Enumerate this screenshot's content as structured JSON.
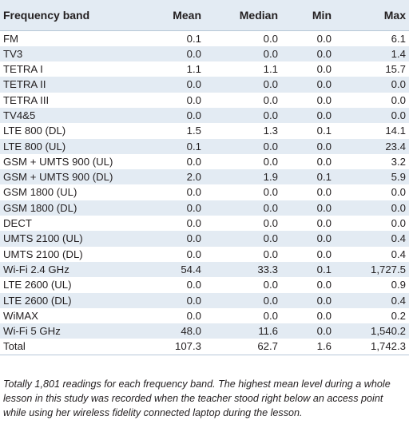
{
  "table": {
    "headers": [
      "Frequency band",
      "Mean",
      "Median",
      "Min",
      "Max"
    ],
    "rows": [
      [
        "FM",
        "0.1",
        "0.0",
        "0.0",
        "6.1"
      ],
      [
        "TV3",
        "0.0",
        "0.0",
        "0.0",
        "1.4"
      ],
      [
        "TETRA I",
        "1.1",
        "1.1",
        "0.0",
        "15.7"
      ],
      [
        "TETRA II",
        "0.0",
        "0.0",
        "0.0",
        "0.0"
      ],
      [
        "TETRA III",
        "0.0",
        "0.0",
        "0.0",
        "0.0"
      ],
      [
        "TV4&5",
        "0.0",
        "0.0",
        "0.0",
        "0.0"
      ],
      [
        "LTE 800 (DL)",
        "1.5",
        "1.3",
        "0.1",
        "14.1"
      ],
      [
        "LTE 800 (UL)",
        "0.1",
        "0.0",
        "0.0",
        "23.4"
      ],
      [
        "GSM + UMTS 900 (UL)",
        "0.0",
        "0.0",
        "0.0",
        "3.2"
      ],
      [
        "GSM + UMTS 900 (DL)",
        "2.0",
        "1.9",
        "0.1",
        "5.9"
      ],
      [
        "GSM 1800 (UL)",
        "0.0",
        "0.0",
        "0.0",
        "0.0"
      ],
      [
        "GSM 1800 (DL)",
        "0.0",
        "0.0",
        "0.0",
        "0.0"
      ],
      [
        "DECT",
        "0.0",
        "0.0",
        "0.0",
        "0.0"
      ],
      [
        "UMTS 2100 (UL)",
        "0.0",
        "0.0",
        "0.0",
        "0.4"
      ],
      [
        "UMTS 2100 (DL)",
        "0.0",
        "0.0",
        "0.0",
        "0.4"
      ],
      [
        "Wi-Fi 2.4 GHz",
        "54.4",
        "33.3",
        "0.1",
        "1,727.5"
      ],
      [
        "LTE 2600 (UL)",
        "0.0",
        "0.0",
        "0.0",
        "0.9"
      ],
      [
        "LTE 2600 (DL)",
        "0.0",
        "0.0",
        "0.0",
        "0.4"
      ],
      [
        "WiMAX",
        "0.0",
        "0.0",
        "0.0",
        "0.2"
      ],
      [
        "Wi-Fi 5 GHz",
        "48.0",
        "11.6",
        "0.0",
        "1,540.2"
      ],
      [
        "Total",
        "107.3",
        "62.7",
        "1.6",
        "1,742.3"
      ]
    ]
  },
  "footnote": "Totally 1,801 readings for each frequency band. The highest mean level during a whole lesson in this study was recorded when the teacher stood right below an access point while using her wireless fidelity connected laptop during the lesson."
}
